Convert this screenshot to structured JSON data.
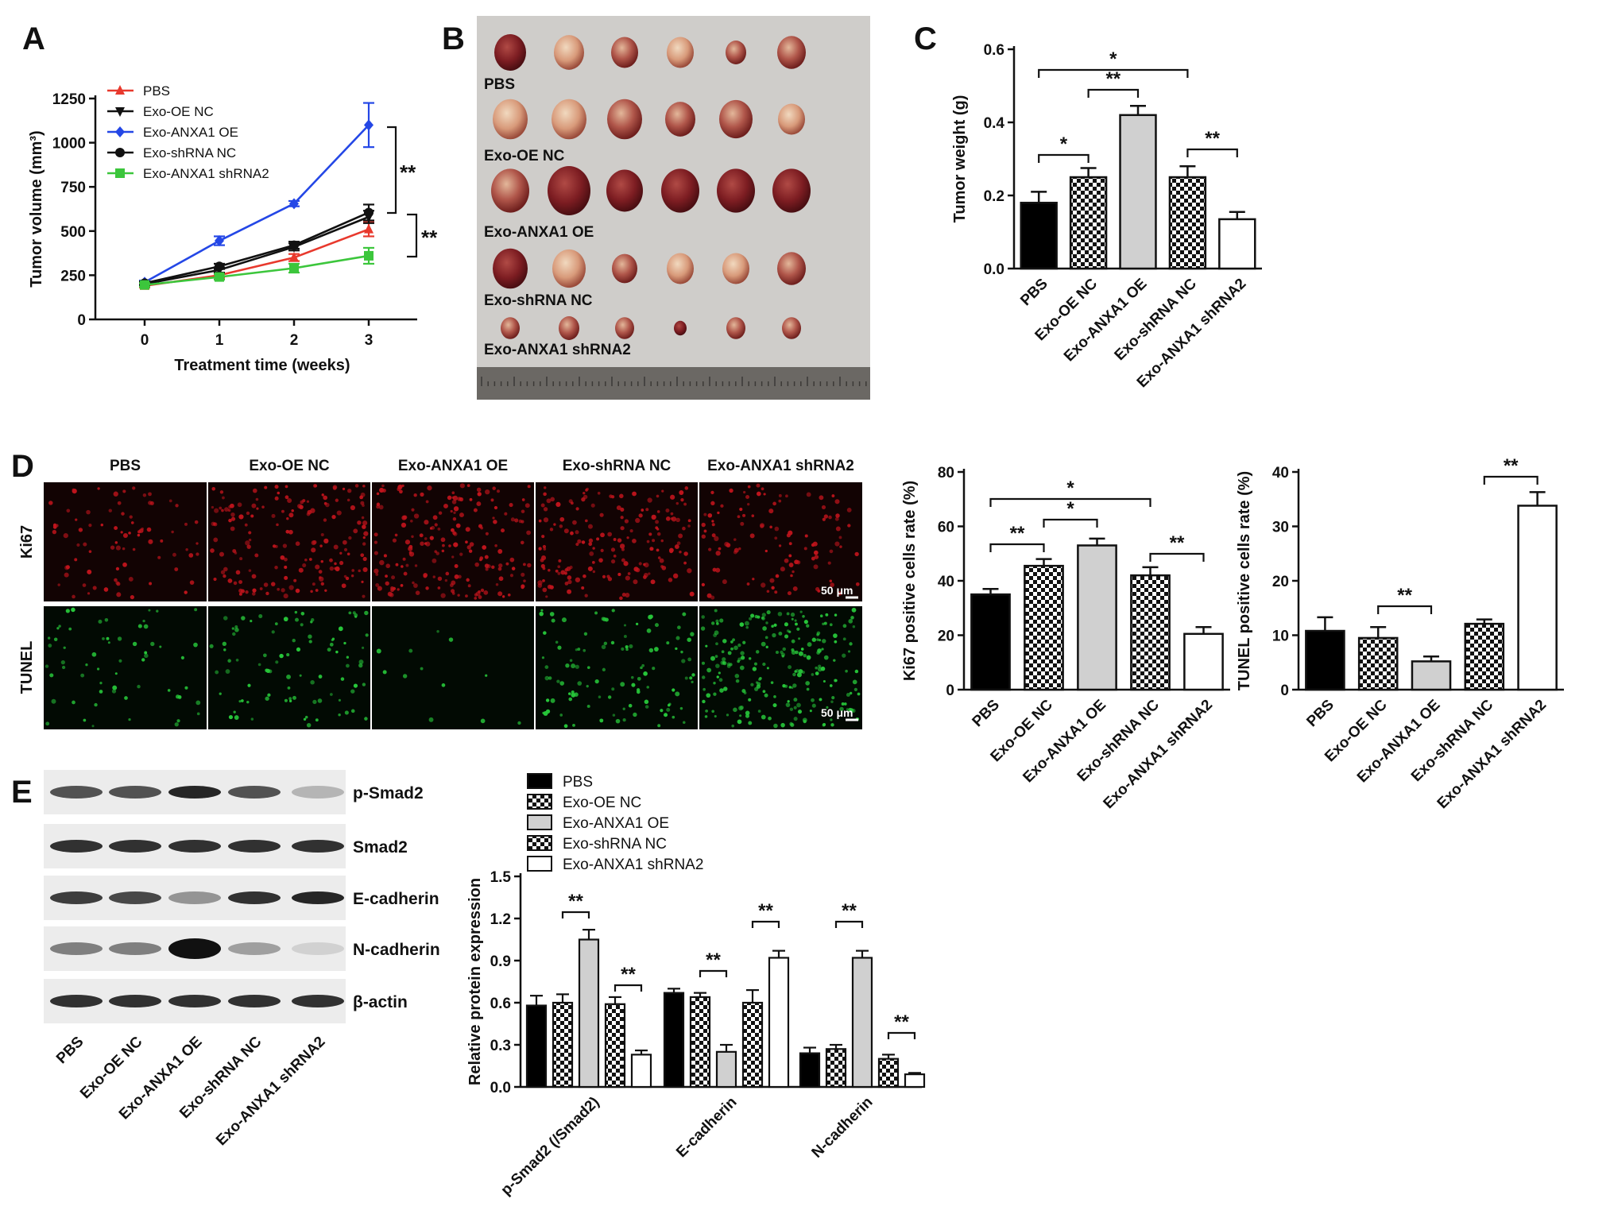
{
  "figure": {
    "panels": {
      "a": "A",
      "b": "B",
      "c": "C",
      "d": "D",
      "e": "E"
    },
    "scale_bar": "50 μm",
    "blot_labels": [
      "p-Smad2",
      "Smad2",
      "E-cadherin",
      "N-cadherin",
      "β-actin"
    ],
    "photo_rows": [
      "PBS",
      "Exo-OE NC",
      "Exo-ANXA1 OE",
      "Exo-shRNA NC",
      "Exo-ANXA1 shRNA2"
    ],
    "micro_columns": [
      "PBS",
      "Exo-OE NC",
      "Exo-ANXA1 OE",
      "Exo-shRNA NC",
      "Exo-ANXA1 shRNA2"
    ],
    "micro_rows": [
      "Ki67",
      "TUNEL"
    ],
    "blot_lanes": [
      "PBS",
      "Exo-OE NC",
      "Exo-ANXA1 OE",
      "Exo-shRNA NC",
      "Exo-ANXA1 shRNA2"
    ]
  },
  "colors": {
    "PBS_line": "#e8392d",
    "OE_NC_line": "#111111",
    "ANXA1_OE_line": "#2447e6",
    "shRNA_NC_line": "#111111",
    "shRNA2_line": "#3cc63c",
    "bar_pbs": "#000000",
    "bar_light": "#d0d0d0",
    "bar_white": "#ffffff",
    "ki67": "#c0141c",
    "tunel": "#27c83a"
  },
  "chart_data": [
    {
      "type": "line",
      "title": "",
      "xlabel": "Treatment time (weeks)",
      "ylabel": "Tumor volume (mm³)",
      "x": [
        0,
        1,
        2,
        3
      ],
      "xticks": [
        "0",
        "1",
        "2",
        "3"
      ],
      "yticks": [
        "0",
        "250",
        "500",
        "750",
        "1000",
        "1250"
      ],
      "ylim": [
        0,
        1250
      ],
      "series": [
        {
          "name": "PBS",
          "values": [
            190,
            250,
            350,
            510
          ],
          "errors": [
            10,
            15,
            20,
            40
          ]
        },
        {
          "name": "Exo-OE NC",
          "values": [
            200,
            280,
            410,
            580
          ],
          "errors": [
            10,
            15,
            20,
            35
          ]
        },
        {
          "name": "Exo-ANXA1 OE",
          "values": [
            210,
            445,
            655,
            1100
          ],
          "errors": [
            10,
            25,
            15,
            125
          ]
        },
        {
          "name": "Exo-shRNA NC",
          "values": [
            205,
            300,
            420,
            605
          ],
          "errors": [
            10,
            15,
            20,
            45
          ]
        },
        {
          "name": "Exo-ANXA1 shRNA2",
          "values": [
            195,
            240,
            290,
            360
          ],
          "errors": [
            10,
            15,
            25,
            45
          ]
        }
      ],
      "significance": [
        "**",
        "**"
      ]
    },
    {
      "type": "bar",
      "ylabel": "Tumor weight (g)",
      "categories": [
        "PBS",
        "Exo-OE NC",
        "Exo-ANXA1 OE",
        "Exo-shRNA NC",
        "Exo-ANXA1 shRNA2"
      ],
      "values": [
        0.18,
        0.25,
        0.42,
        0.25,
        0.135
      ],
      "errors": [
        0.03,
        0.025,
        0.025,
        0.03,
        0.02
      ],
      "yticks": [
        "0.0",
        "0.2",
        "0.4",
        "0.6"
      ],
      "ylim": [
        0,
        0.6
      ],
      "significance": [
        {
          "a": 0,
          "b": 1,
          "label": "*"
        },
        {
          "a": 1,
          "b": 2,
          "label": "**"
        },
        {
          "a": 0,
          "b": 3,
          "label": "*"
        },
        {
          "a": 3,
          "b": 4,
          "label": "**"
        }
      ]
    },
    {
      "type": "bar",
      "ylabel": "Ki67 positive cells rate (%)",
      "categories": [
        "PBS",
        "Exo-OE NC",
        "Exo-ANXA1 OE",
        "Exo-shRNA NC",
        "Exo-ANXA1 shRNA2"
      ],
      "values": [
        35,
        45.5,
        53,
        42,
        20.5
      ],
      "errors": [
        2,
        2.5,
        2.5,
        3,
        2.5
      ],
      "yticks": [
        "0",
        "20",
        "40",
        "60",
        "80"
      ],
      "ylim": [
        0,
        80
      ],
      "significance": [
        {
          "a": 0,
          "b": 1,
          "label": "**"
        },
        {
          "a": 1,
          "b": 2,
          "label": "*"
        },
        {
          "a": 0,
          "b": 3,
          "label": "*"
        },
        {
          "a": 3,
          "b": 4,
          "label": "**"
        }
      ]
    },
    {
      "type": "bar",
      "ylabel": "TUNEL positive cells rate (%)",
      "categories": [
        "PBS",
        "Exo-OE NC",
        "Exo-ANXA1 OE",
        "Exo-shRNA NC",
        "Exo-ANXA1 shRNA2"
      ],
      "values": [
        10.8,
        9.5,
        5.2,
        12.1,
        33.8
      ],
      "errors": [
        2.5,
        2.0,
        0.9,
        0.8,
        2.5
      ],
      "yticks": [
        "0",
        "10",
        "20",
        "30",
        "40"
      ],
      "ylim": [
        0,
        40
      ],
      "significance": [
        {
          "a": 1,
          "b": 2,
          "label": "**"
        },
        {
          "a": 3,
          "b": 4,
          "label": "**"
        }
      ]
    },
    {
      "type": "bar",
      "ylabel": "Relative protein expression",
      "categories": [
        "p-Smad2 (/Smad2)",
        "E-cadherin",
        "N-cadherin"
      ],
      "yticks": [
        "0.0",
        "0.3",
        "0.6",
        "0.9",
        "1.2",
        "1.5"
      ],
      "ylim": [
        0,
        1.5
      ],
      "series": [
        {
          "name": "PBS",
          "values": [
            0.58,
            0.67,
            0.24
          ],
          "errors": [
            0.07,
            0.03,
            0.04
          ]
        },
        {
          "name": "Exo-OE NC",
          "values": [
            0.6,
            0.64,
            0.27
          ],
          "errors": [
            0.06,
            0.03,
            0.03
          ]
        },
        {
          "name": "Exo-ANXA1 OE",
          "values": [
            1.05,
            0.25,
            0.92
          ],
          "errors": [
            0.07,
            0.05,
            0.05
          ]
        },
        {
          "name": "Exo-shRNA NC",
          "values": [
            0.59,
            0.6,
            0.2
          ],
          "errors": [
            0.05,
            0.09,
            0.03
          ]
        },
        {
          "name": "Exo-ANXA1 shRNA2",
          "values": [
            0.23,
            0.92,
            0.09
          ],
          "errors": [
            0.03,
            0.05,
            0.01
          ]
        }
      ],
      "significance": [
        {
          "group": 0,
          "a": 1,
          "b": 2,
          "label": "**"
        },
        {
          "group": 0,
          "a": 3,
          "b": 4,
          "label": "**"
        },
        {
          "group": 1,
          "a": 1,
          "b": 2,
          "label": "**"
        },
        {
          "group": 1,
          "a": 3,
          "b": 4,
          "label": "**"
        },
        {
          "group": 2,
          "a": 1,
          "b": 2,
          "label": "**"
        },
        {
          "group": 2,
          "a": 3,
          "b": 4,
          "label": "**"
        }
      ]
    }
  ]
}
